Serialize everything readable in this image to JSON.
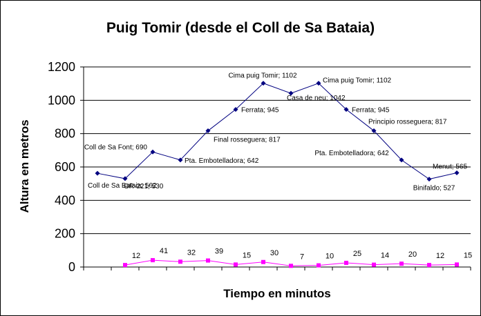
{
  "chart_data": {
    "type": "line",
    "title": "Puig Tomir (desde el Coll de Sa Bataia)",
    "xlabel": "Tiempo en minutos",
    "ylabel": "Altura en metros",
    "ylim": [
      0,
      1200
    ],
    "yticks": [
      0,
      200,
      400,
      600,
      800,
      1000,
      1200
    ],
    "grid": true,
    "colors": {
      "altitude": "#000080",
      "minutes": "#ff00ff"
    },
    "series": [
      {
        "values": [
          562,
          530,
          690,
          642,
          817,
          945,
          1102,
          1042,
          1102,
          945,
          817,
          642,
          527,
          565
        ],
        "labels": [
          "Coll de Sa Bataia; 562",
          "GR-221; 530",
          "Coll de Sa Font; 690",
          "Pta. Embotelladora; 642",
          "Final rosseguera; 817",
          "Ferrata; 945",
          "Cima puig Tomir; 1102",
          "Casa de neu; 1042",
          "Cima puig Tomir; 1102",
          "Ferrata; 945",
          "Principio rosseguera; 817",
          "Pta. Embotelladora; 642",
          "Binifaldo; 527",
          "Menut; 565"
        ]
      },
      {
        "values": [
          null,
          12,
          41,
          32,
          39,
          15,
          30,
          7,
          10,
          25,
          14,
          20,
          12,
          15
        ],
        "labels": [
          null,
          "12",
          "41",
          "32",
          "39",
          "15",
          "30",
          "7",
          "10",
          "25",
          "14",
          "20",
          "12",
          "15"
        ]
      }
    ]
  }
}
